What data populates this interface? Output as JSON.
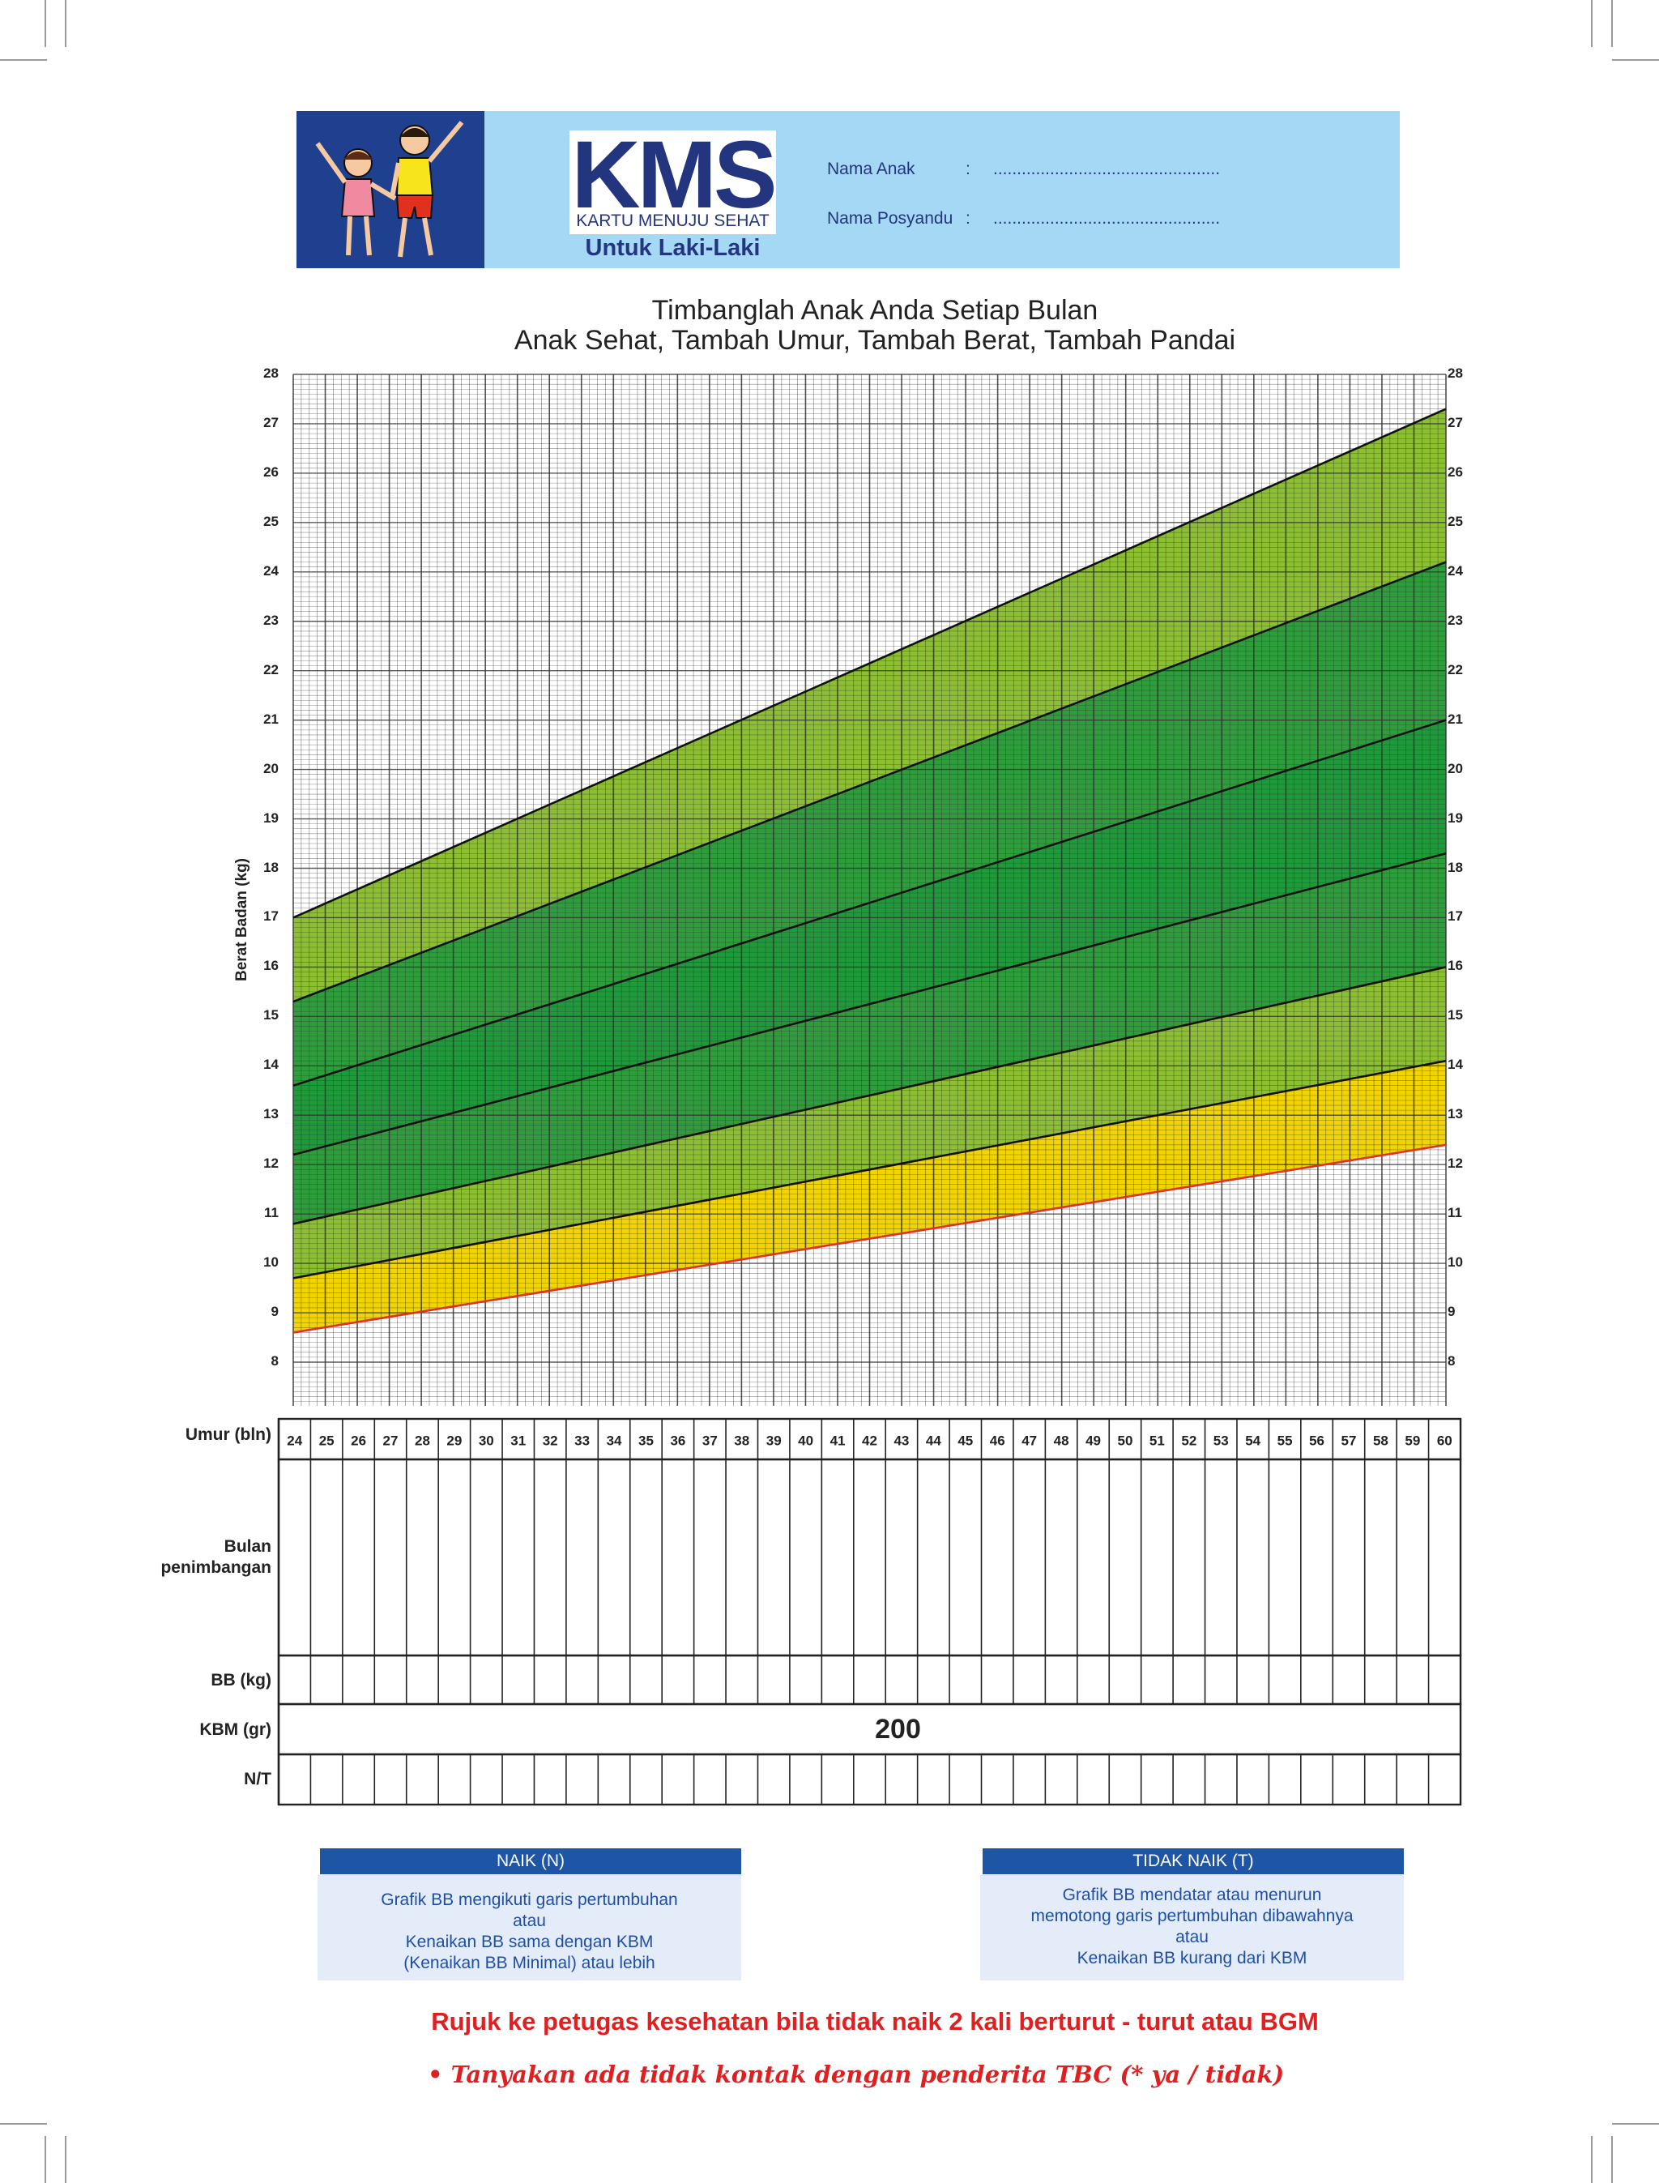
{
  "header": {
    "logo_text": "KMS",
    "logo_subtitle": "KARTU MENUJU SEHAT",
    "gender_label": "Untuk Laki-Laki",
    "fields": [
      {
        "label": "Nama Anak",
        "separator": ":",
        "value": "................................................"
      },
      {
        "label": "Nama Posyandu",
        "separator": ":",
        "value": "................................................"
      }
    ]
  },
  "title_line1": "Timbanglah Anak Anda Setiap Bulan",
  "title_line2": "Anak Sehat, Tambah Umur, Tambah Berat, Tambah Pandai",
  "chart_data": {
    "type": "area",
    "ylabel": "Berat Badan (kg)",
    "xlabel": "Umur (bln)",
    "ylim": [
      8,
      28
    ],
    "xlim": [
      24,
      60
    ],
    "yticks": [
      28,
      27,
      26,
      25,
      24,
      23,
      22,
      21,
      20,
      19,
      18,
      17,
      16,
      15,
      14,
      13,
      12,
      11,
      10,
      9,
      8
    ],
    "x_ticks": [
      24,
      25,
      26,
      27,
      28,
      29,
      30,
      31,
      32,
      33,
      34,
      35,
      36,
      37,
      38,
      39,
      40,
      41,
      42,
      43,
      44,
      45,
      46,
      47,
      48,
      49,
      50,
      51,
      52,
      53,
      54,
      55,
      56,
      57,
      58,
      59,
      60
    ],
    "grid": true,
    "curves": [
      {
        "at_24": 8.6,
        "at_60": 12.4,
        "color": "#e0301e"
      },
      {
        "at_24": 9.7,
        "at_60": 14.1,
        "color": "#111111"
      },
      {
        "at_24": 10.8,
        "at_60": 16.0,
        "color": "#111111"
      },
      {
        "at_24": 12.2,
        "at_60": 18.3,
        "color": "#111111"
      },
      {
        "at_24": 13.6,
        "at_60": 21.0,
        "color": "#111111"
      },
      {
        "at_24": 15.3,
        "at_60": 24.2,
        "color": "#111111"
      },
      {
        "at_24": 17.0,
        "at_60": 27.3,
        "color": "#111111"
      }
    ],
    "bands": [
      "#f2d400",
      "#8cbf32",
      "#2e9e3c",
      "#1e9a3a",
      "#2e9e3c",
      "#8cbf32",
      "#f2d400"
    ]
  },
  "table": {
    "row_labels": [
      "Umur (bln)",
      "Bulan",
      "penimbangan",
      "BB (kg)",
      "KBM (gr)",
      "N/T"
    ],
    "kbm_value": "200"
  },
  "legend": {
    "naik": {
      "title": "NAIK (N)",
      "lines": [
        "Grafik BB mengikuti garis pertumbuhan",
        "atau",
        "Kenaikan BB sama dengan KBM",
        "(Kenaikan BB Minimal) atau lebih"
      ]
    },
    "tidak_naik": {
      "title": "TIDAK NAIK (T)",
      "lines": [
        "Grafik BB mendatar atau menurun",
        "memotong garis pertumbuhan dibawahnya",
        "atau",
        "Kenaikan BB kurang dari KBM"
      ]
    }
  },
  "warning": "Rujuk ke petugas kesehatan bila tidak naik 2 kali berturut - turut atau BGM",
  "note": "•  Tanyakan ada tidak kontak dengan penderita TBC (* ya / tidak)"
}
